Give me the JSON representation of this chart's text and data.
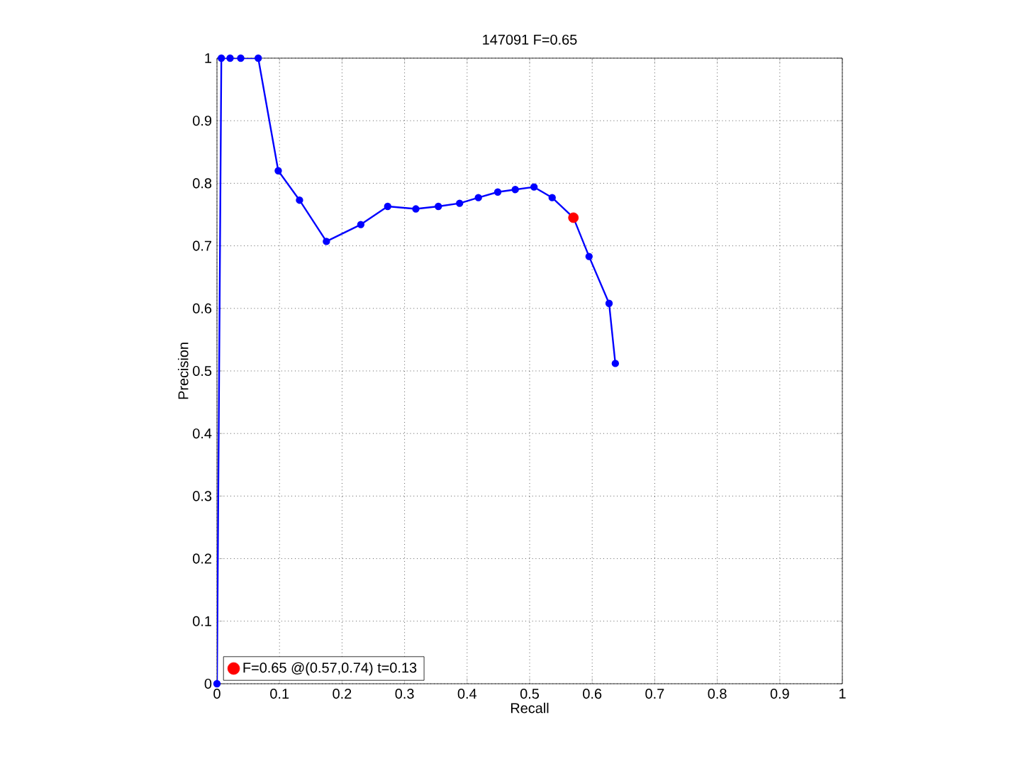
{
  "chart_data": {
    "type": "line",
    "title": "147091 F=0.65",
    "xlabel": "Recall",
    "ylabel": "Precision",
    "xlim": [
      0,
      1
    ],
    "ylim": [
      0,
      1
    ],
    "xticks": [
      0,
      0.1,
      0.2,
      0.3,
      0.4,
      0.5,
      0.6,
      0.7,
      0.8,
      0.9,
      1
    ],
    "yticks": [
      0,
      0.1,
      0.2,
      0.3,
      0.4,
      0.5,
      0.6,
      0.7,
      0.8,
      0.9,
      1
    ],
    "grid": true,
    "legend": "bottom left",
    "marker": "circle",
    "line_style": "solid",
    "series": [
      {
        "color": "#0000ff",
        "x": [
          0,
          0.007,
          0.021,
          0.038,
          0.066,
          0.098,
          0.132,
          0.175,
          0.23,
          0.273,
          0.318,
          0.354,
          0.388,
          0.418,
          0.449,
          0.477,
          0.507,
          0.536,
          0.57,
          0.595,
          0.627,
          0.637
        ],
        "values": [
          0,
          1,
          1,
          1,
          1,
          0.82,
          0.773,
          0.707,
          0.734,
          0.763,
          0.759,
          0.763,
          0.768,
          0.777,
          0.786,
          0.79,
          0.794,
          0.777,
          0.745,
          0.683,
          0.608,
          0.512
        ]
      },
      {
        "type": "scatter",
        "name": "F=0.65 @(0.57,0.74) t=0.13",
        "color": "#ff0000",
        "x": [
          0.57
        ],
        "values": [
          0.745
        ]
      }
    ]
  }
}
